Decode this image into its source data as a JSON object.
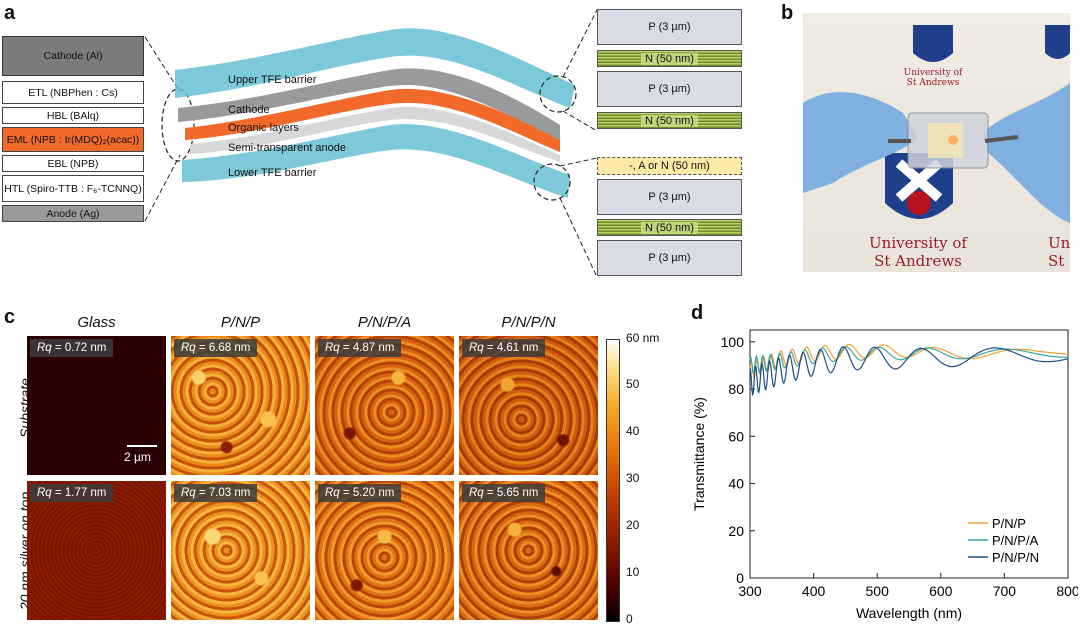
{
  "panels": {
    "a": "a",
    "b": "b",
    "c": "c",
    "d": "d"
  },
  "panel_a": {
    "stack_layers": [
      "Cathode (Al)",
      "ETL (NBPhen : Cs)",
      "HBL (BAlq)",
      "EML (NPB : Ir(MDQ)₂(acac))",
      "EBL (NPB)",
      "HTL (Spiro-TTB : F₆-TCNNQ)",
      "Anode (Ag)"
    ],
    "device_labels": [
      "Upper TFE barrier",
      "Cathode",
      "Organic layers",
      "Semi-transparent anode",
      "Lower TFE barrier"
    ],
    "barrier_layers": [
      "P (3 µm)",
      "N (50 nm)",
      "P (3 µm)",
      "N (50 nm)",
      "-, A or N (50 nm)",
      "P (3 µm)",
      "N (50 nm)",
      "P (3 µm)"
    ]
  },
  "panel_b": {
    "logo_text": [
      "University of",
      "St Andrews"
    ],
    "logo_text_cut": [
      "Uni",
      "St"
    ]
  },
  "panel_c": {
    "columns": [
      "Glass",
      "P/N/P",
      "P/N/P/A",
      "P/N/P/N"
    ],
    "rows": [
      "Substrate",
      "20 nm silver on top"
    ],
    "rq_prefix": "Rq",
    "rq_values": [
      [
        "= 0.72 nm",
        "= 6.68 nm",
        "= 4.87 nm",
        "= 4.61 nm"
      ],
      [
        "= 1.77 nm",
        "= 7.03 nm",
        "= 5.20 nm",
        "= 5.65 nm"
      ]
    ],
    "scale_bar": "2 µm",
    "colorbar_ticks": [
      "60 nm",
      "50",
      "40",
      "30",
      "20",
      "10",
      "0"
    ],
    "colors": {
      "low": "#000000",
      "mid": "#c24000",
      "high": "#ffffff"
    }
  },
  "chart_data": {
    "type": "line",
    "title": "",
    "xlabel": "Wavelength (nm)",
    "ylabel": "Transmittance (%)",
    "xlim": [
      300,
      800
    ],
    "ylim": [
      0,
      105
    ],
    "xticks": [
      "300",
      "400",
      "500",
      "600",
      "700",
      "800"
    ],
    "yticks": [
      "0",
      "20",
      "40",
      "60",
      "80",
      "100"
    ],
    "legend": "bottom-right",
    "series": [
      {
        "name": "P/N/P",
        "color": "#f0a030",
        "x": [
          300,
          350,
          400,
          450,
          500,
          550,
          600,
          650,
          700,
          750,
          800
        ],
        "y": [
          88,
          93,
          95,
          96,
          96,
          96,
          95,
          95,
          95,
          95,
          96
        ]
      },
      {
        "name": "P/N/P/A",
        "color": "#3aa6a0",
        "x": [
          300,
          350,
          400,
          450,
          500,
          550,
          600,
          650,
          700,
          750,
          800
        ],
        "y": [
          90,
          92,
          94,
          95,
          95,
          95,
          95,
          95,
          95,
          95,
          95
        ]
      },
      {
        "name": "P/N/P/N",
        "color": "#1f4f86",
        "x": [
          300,
          350,
          400,
          450,
          500,
          550,
          600,
          650,
          700,
          750,
          800
        ],
        "y": [
          83,
          88,
          91,
          93,
          93,
          93,
          93,
          94,
          94,
          94,
          95
        ]
      }
    ]
  }
}
